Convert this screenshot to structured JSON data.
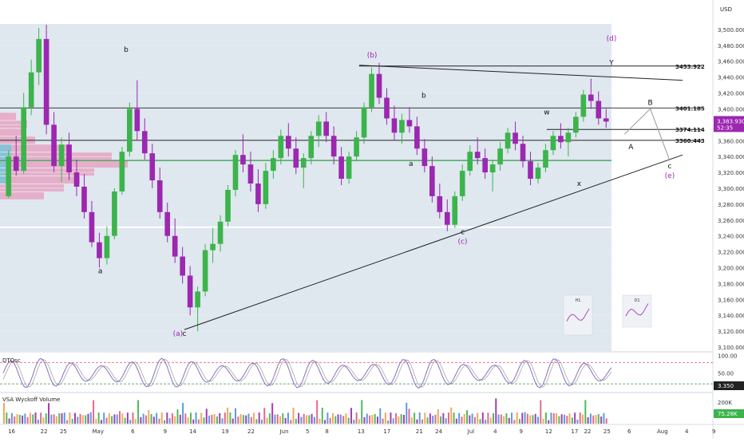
{
  "currency": "USD",
  "colors": {
    "panel_bg": "#dfe7ef",
    "pane_bg": "#ffffff",
    "up": "#26a69a",
    "up_green": "#3cb44b",
    "down": "#9c27b0",
    "wave_purple": "#9c27b0",
    "support_green": "#2e9e46",
    "profile_pink": "#e7a3c2",
    "profile_blue": "#7cc4d8",
    "osc_line": "#8e6bbf",
    "osc_signal": "#9a9a9a",
    "ob_line": "#e05a7a",
    "os_line": "#2e9e46",
    "price_badge": "#9c27b0"
  },
  "chart_data": {
    "type": "candlestick",
    "main": {
      "yticks": [
        3100,
        3120,
        3140,
        3160,
        3180,
        3200,
        3220,
        3240,
        3260,
        3280,
        3300,
        3320,
        3340,
        3360,
        3380,
        3400,
        3420,
        3440,
        3460,
        3480,
        3500
      ],
      "ylim": [
        3095,
        3515
      ],
      "xlim": [
        0,
        94
      ],
      "x_tick_labels": [
        {
          "x": 1,
          "label": "16"
        },
        {
          "x": 6,
          "label": "22"
        },
        {
          "x": 9,
          "label": "25"
        },
        {
          "x": 14,
          "label": "May"
        },
        {
          "x": 20,
          "label": "6"
        },
        {
          "x": 25,
          "label": "9"
        },
        {
          "x": 29,
          "label": "14"
        },
        {
          "x": 34,
          "label": "19"
        },
        {
          "x": 38,
          "label": "22"
        },
        {
          "x": 43,
          "label": "Jun"
        },
        {
          "x": 47,
          "label": "5"
        },
        {
          "x": 50,
          "label": "8"
        },
        {
          "x": 55,
          "label": "13"
        },
        {
          "x": 59,
          "label": "17"
        },
        {
          "x": 64,
          "label": "21"
        },
        {
          "x": 67,
          "label": "24"
        },
        {
          "x": 72,
          "label": "Jul"
        },
        {
          "x": 76,
          "label": "4"
        },
        {
          "x": 80,
          "label": "9"
        },
        {
          "x": 84,
          "label": "12"
        },
        {
          "x": 88,
          "label": "17"
        },
        {
          "x": 90,
          "label": "22"
        },
        {
          "x": 93,
          "label": "25"
        }
      ],
      "extra_x_tick_labels": [
        "6",
        "Aug",
        "4",
        "9"
      ],
      "horizontal_levels": [
        {
          "value": 3453.922,
          "label": "3453.922"
        },
        {
          "value": 3401.185,
          "label": "3401.185"
        },
        {
          "value": 3374.114,
          "label": "3374.114"
        },
        {
          "value": 3360.443,
          "label": "3360.443"
        }
      ],
      "support_level": 3335,
      "floor_level": 3251,
      "last_price": {
        "value": 3383.93,
        "label": "3,383.930",
        "countdown": "52:35"
      },
      "wave_labels": [
        {
          "text": "b",
          "x": 19,
          "price": 3472,
          "color": "black"
        },
        {
          "text": "a",
          "x": 15,
          "price": 3193,
          "color": "black"
        },
        {
          "text": "(a)",
          "x": 27,
          "price": 3114,
          "color": "purple"
        },
        {
          "text": "c",
          "x": 28,
          "price": 3114,
          "color": "black"
        },
        {
          "text": "(b)",
          "x": 57,
          "price": 3465,
          "color": "purple"
        },
        {
          "text": "b",
          "x": 65,
          "price": 3414,
          "color": "black"
        },
        {
          "text": "a",
          "x": 63,
          "price": 3328,
          "color": "black"
        },
        {
          "text": "c",
          "x": 71,
          "price": 3242,
          "color": "black"
        },
        {
          "text": "(c)",
          "x": 71,
          "price": 3230,
          "color": "purple"
        },
        {
          "text": "w",
          "x": 84,
          "price": 3393,
          "color": "black"
        },
        {
          "text": "x",
          "x": 89,
          "price": 3303,
          "color": "black"
        },
        {
          "text": "Y",
          "x": 94,
          "price": 3455,
          "color": "black"
        },
        {
          "text": "(d)",
          "x": 94,
          "price": 3486,
          "color": "purple"
        },
        {
          "text": "B",
          "x": 100,
          "price": 3405,
          "color": "black"
        },
        {
          "text": "A",
          "x": 97,
          "price": 3349,
          "color": "black"
        },
        {
          "text": "c",
          "x": 103,
          "price": 3325,
          "color": "black"
        },
        {
          "text": "(e)",
          "x": 103,
          "price": 3313,
          "color": "purple"
        }
      ],
      "trendlines": [
        {
          "from": {
            "x": 28,
            "price": 3122
          },
          "to": {
            "x": 105,
            "price": 3342
          }
        },
        {
          "from": {
            "x": 55,
            "price": 3455
          },
          "to": {
            "x": 105,
            "price": 3436
          }
        }
      ],
      "projection_path": [
        {
          "x": 96,
          "price": 3368
        },
        {
          "x": 100,
          "price": 3400
        },
        {
          "x": 103,
          "price": 3335
        }
      ],
      "candles": [
        [
          3290,
          3348,
          3288,
          3340
        ],
        [
          3340,
          3366,
          3316,
          3322
        ],
        [
          3322,
          3420,
          3318,
          3402
        ],
        [
          3402,
          3462,
          3392,
          3446
        ],
        [
          3446,
          3502,
          3430,
          3488
        ],
        [
          3488,
          3506,
          3368,
          3380
        ],
        [
          3380,
          3396,
          3320,
          3328
        ],
        [
          3328,
          3364,
          3308,
          3355
        ],
        [
          3355,
          3370,
          3310,
          3320
        ],
        [
          3320,
          3336,
          3290,
          3302
        ],
        [
          3302,
          3318,
          3262,
          3270
        ],
        [
          3270,
          3284,
          3226,
          3232
        ],
        [
          3232,
          3244,
          3200,
          3212
        ],
        [
          3212,
          3252,
          3204,
          3240
        ],
        [
          3240,
          3300,
          3236,
          3296
        ],
        [
          3296,
          3352,
          3292,
          3346
        ],
        [
          3346,
          3408,
          3340,
          3400
        ],
        [
          3400,
          3436,
          3360,
          3372
        ],
        [
          3372,
          3388,
          3336,
          3344
        ],
        [
          3344,
          3356,
          3300,
          3310
        ],
        [
          3310,
          3326,
          3262,
          3270
        ],
        [
          3270,
          3282,
          3232,
          3240
        ],
        [
          3240,
          3262,
          3206,
          3214
        ],
        [
          3214,
          3226,
          3180,
          3190
        ],
        [
          3190,
          3202,
          3140,
          3150
        ],
        [
          3150,
          3176,
          3120,
          3170
        ],
        [
          3170,
          3230,
          3164,
          3222
        ],
        [
          3222,
          3250,
          3206,
          3230
        ],
        [
          3230,
          3266,
          3220,
          3258
        ],
        [
          3258,
          3304,
          3252,
          3298
        ],
        [
          3298,
          3348,
          3290,
          3342
        ],
        [
          3342,
          3368,
          3320,
          3330
        ],
        [
          3330,
          3346,
          3296,
          3306
        ],
        [
          3306,
          3324,
          3270,
          3280
        ],
        [
          3280,
          3332,
          3274,
          3322
        ],
        [
          3322,
          3348,
          3312,
          3338
        ],
        [
          3338,
          3374,
          3330,
          3366
        ],
        [
          3366,
          3382,
          3340,
          3350
        ],
        [
          3350,
          3364,
          3318,
          3326
        ],
        [
          3326,
          3344,
          3300,
          3338
        ],
        [
          3338,
          3372,
          3330,
          3366
        ],
        [
          3366,
          3392,
          3352,
          3384
        ],
        [
          3384,
          3396,
          3358,
          3366
        ],
        [
          3366,
          3378,
          3330,
          3340
        ],
        [
          3340,
          3352,
          3304,
          3312
        ],
        [
          3312,
          3346,
          3306,
          3340
        ],
        [
          3340,
          3372,
          3334,
          3364
        ],
        [
          3364,
          3408,
          3356,
          3402
        ],
        [
          3402,
          3452,
          3396,
          3444
        ],
        [
          3444,
          3458,
          3406,
          3414
        ],
        [
          3414,
          3426,
          3380,
          3388
        ],
        [
          3388,
          3404,
          3360,
          3370
        ],
        [
          3370,
          3394,
          3356,
          3386
        ],
        [
          3386,
          3402,
          3370,
          3378
        ],
        [
          3378,
          3390,
          3342,
          3350
        ],
        [
          3350,
          3362,
          3320,
          3328
        ],
        [
          3328,
          3340,
          3282,
          3290
        ],
        [
          3290,
          3306,
          3262,
          3270
        ],
        [
          3270,
          3286,
          3246,
          3254
        ],
        [
          3254,
          3296,
          3250,
          3290
        ],
        [
          3290,
          3330,
          3284,
          3322
        ],
        [
          3322,
          3354,
          3316,
          3346
        ],
        [
          3346,
          3364,
          3330,
          3338
        ],
        [
          3338,
          3350,
          3312,
          3320
        ],
        [
          3320,
          3336,
          3296,
          3330
        ],
        [
          3330,
          3358,
          3322,
          3350
        ],
        [
          3350,
          3376,
          3344,
          3370
        ],
        [
          3370,
          3384,
          3348,
          3356
        ],
        [
          3356,
          3366,
          3326,
          3334
        ],
        [
          3334,
          3346,
          3304,
          3312
        ],
        [
          3312,
          3332,
          3306,
          3326
        ],
        [
          3326,
          3356,
          3320,
          3348
        ],
        [
          3348,
          3372,
          3342,
          3366
        ],
        [
          3366,
          3382,
          3350,
          3358
        ],
        [
          3358,
          3376,
          3340,
          3370
        ],
        [
          3370,
          3396,
          3364,
          3390
        ],
        [
          3390,
          3424,
          3384,
          3418
        ],
        [
          3418,
          3438,
          3400,
          3410
        ],
        [
          3410,
          3422,
          3380,
          3388
        ],
        [
          3388,
          3400,
          3376,
          3384
        ]
      ]
    },
    "oscillator": {
      "name": "DTOsc",
      "ylim": [
        0,
        110
      ],
      "yticks": [
        100,
        50
      ],
      "overbought": 80,
      "oversold": 20,
      "value_label": "3.350"
    },
    "volume": {
      "name": "VSA Wyckoff Volume",
      "yticks": [
        "200K",
        "100K"
      ],
      "value_label": "75.28K"
    },
    "insets": [
      {
        "label": "H1"
      },
      {
        "label": "D1"
      }
    ]
  }
}
